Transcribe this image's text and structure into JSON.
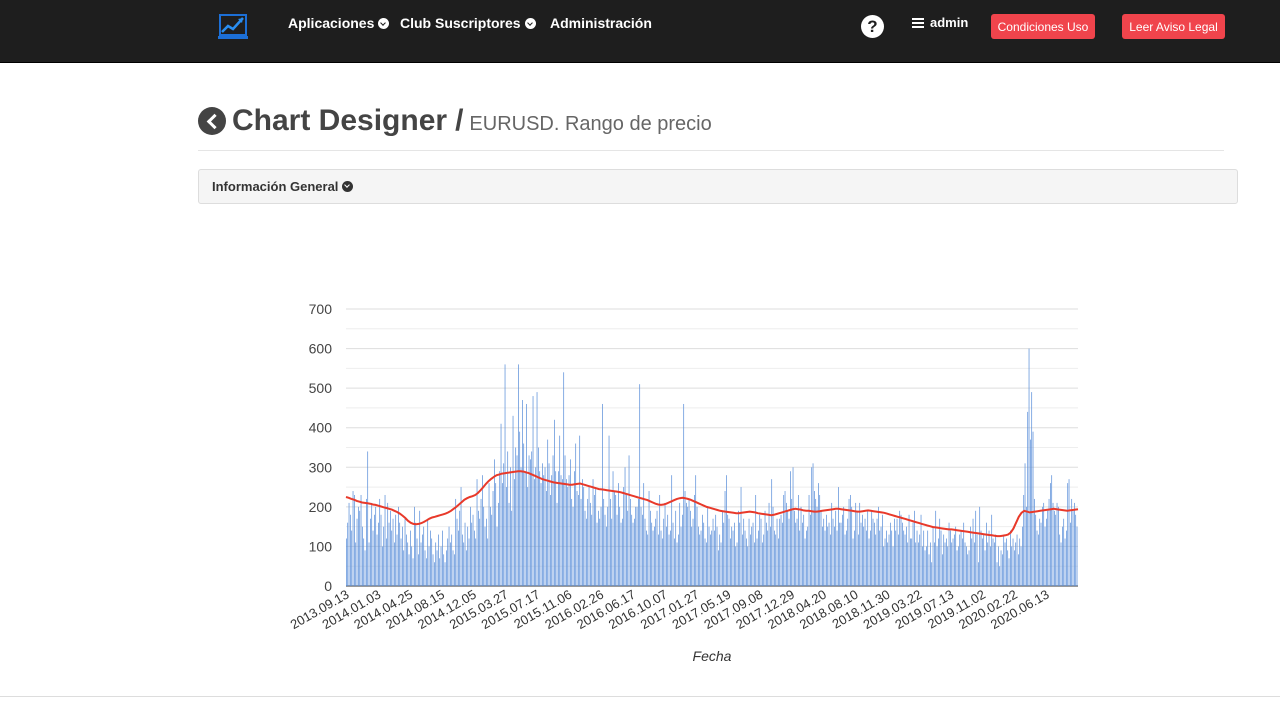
{
  "nav": {
    "logo_icon": "chart-logo-icon",
    "items": [
      {
        "label": "Aplicaciones",
        "dropdown": true
      },
      {
        "label": "Club Suscriptores",
        "dropdown": true
      },
      {
        "label": "Administración",
        "dropdown": false
      }
    ],
    "help_symbol": "?",
    "user": "admin",
    "buttons": [
      {
        "label": "Condiciones Uso"
      },
      {
        "label": "Leer Aviso Legal"
      }
    ],
    "accent_color": "#f0444c"
  },
  "page": {
    "title": "Chart Designer",
    "separator": "/",
    "subtitle": "EURUSD. Rango de precio"
  },
  "panel": {
    "title": "Información General"
  },
  "chart_data": {
    "type": "bar",
    "xlabel": "Fecha",
    "ylabel": "",
    "ylim": [
      0,
      700
    ],
    "yticks": [
      0,
      100,
      200,
      300,
      400,
      500,
      600,
      700
    ],
    "grid": true,
    "x_tick_labels": [
      "2013.09.13",
      "2014.01.03",
      "2014.04.25",
      "2014.08.15",
      "2014.12.05",
      "2015.03.27",
      "2015.07.17",
      "2015.11.06",
      "2016.02.26",
      "2016.06.17",
      "2016.10.07",
      "2017.01.27",
      "2017.05.19",
      "2017.09.08",
      "2017.12.29",
      "2018.04.20",
      "2018.08.10",
      "2018.11.30",
      "2019.03.22",
      "2019.07.13",
      "2019.11.02",
      "2020.02.22",
      "2020.06.13"
    ],
    "series": [
      {
        "type": "bar",
        "color": "#5b8fd9",
        "values": [
          120,
          160,
          210,
          180,
          140,
          240,
          230,
          110,
          170,
          200,
          190,
          230,
          150,
          120,
          90,
          220,
          340,
          110,
          170,
          210,
          140,
          180,
          200,
          130,
          160,
          220,
          180,
          100,
          150,
          230,
          120,
          210,
          160,
          190,
          140,
          170,
          110,
          180,
          130,
          200,
          160,
          120,
          150,
          90,
          170,
          130,
          110,
          80,
          140,
          100,
          70,
          200,
          160,
          120,
          80,
          190,
          110,
          130,
          150,
          90,
          70,
          170,
          100,
          140,
          120,
          80,
          60,
          110,
          90,
          130,
          70,
          100,
          140,
          80,
          60,
          90,
          120,
          150,
          110,
          130,
          90,
          80,
          220,
          170,
          140,
          190,
          250,
          130,
          110,
          160,
          90,
          150,
          120,
          200,
          160,
          180,
          140,
          120,
          270,
          190,
          170,
          220,
          280,
          200,
          150,
          170,
          120,
          260,
          200,
          180,
          240,
          320,
          260,
          150,
          210,
          290,
          410,
          260,
          310,
          560,
          250,
          340,
          210,
          300,
          190,
          430,
          270,
          350,
          330,
          560,
          390,
          300,
          470,
          360,
          290,
          460,
          250,
          330,
          320,
          340,
          480,
          270,
          300,
          490,
          350,
          290,
          260,
          310,
          280,
          300,
          240,
          370,
          310,
          230,
          280,
          330,
          420,
          290,
          210,
          290,
          380,
          280,
          270,
          540,
          330,
          270,
          250,
          280,
          320,
          220,
          200,
          290,
          360,
          240,
          230,
          380,
          220,
          270,
          250,
          190,
          170,
          220,
          250,
          210,
          180,
          270,
          230,
          250,
          160,
          190,
          170,
          200,
          460,
          220,
          180,
          150,
          200,
          380,
          220,
          170,
          290,
          240,
          230,
          180,
          260,
          200,
          160,
          170,
          250,
          300,
          230,
          190,
          330,
          220,
          180,
          160,
          170,
          200,
          200,
          220,
          510,
          200,
          180,
          260,
          170,
          140,
          130,
          240,
          190,
          160,
          140,
          150,
          170,
          190,
          130,
          230,
          140,
          120,
          170,
          210,
          150,
          180,
          130,
          140,
          280,
          160,
          120,
          190,
          110,
          130,
          210,
          150,
          180,
          460,
          240,
          210,
          200,
          220,
          190,
          150,
          170,
          230,
          280,
          200,
          150,
          130,
          140,
          180,
          160,
          120,
          110,
          200,
          150,
          130,
          140,
          170,
          140,
          180,
          150,
          90,
          130,
          110,
          190,
          160,
          240,
          280,
          180,
          170,
          120,
          150,
          140,
          160,
          100,
          110,
          190,
          160,
          250,
          130,
          170,
          140,
          120,
          100,
          170,
          130,
          150,
          160,
          110,
          230,
          120,
          140,
          180,
          170,
          110,
          130,
          190,
          160,
          140,
          210,
          150,
          270,
          200,
          140,
          130,
          170,
          120,
          170,
          180,
          160,
          230,
          240,
          210,
          190,
          170,
          290,
          220,
          300,
          190,
          160,
          170,
          230,
          140,
          200,
          160,
          180,
          120,
          140,
          150,
          230,
          180,
          300,
          310,
          240,
          220,
          200,
          260,
          230,
          190,
          150,
          170,
          140,
          180,
          150,
          160,
          130,
          210,
          170,
          150,
          190,
          140,
          250,
          160,
          160,
          180,
          200,
          130,
          140,
          170,
          220,
          230,
          200,
          120,
          140,
          210,
          190,
          130,
          210,
          160,
          180,
          150,
          170,
          140,
          190,
          120,
          140,
          190,
          170,
          160,
          130,
          170,
          200,
          140,
          150,
          180,
          100,
          120,
          140,
          110,
          130,
          160,
          140,
          100,
          170,
          140,
          170,
          130,
          190,
          180,
          160,
          140,
          130,
          150,
          110,
          180,
          120,
          120,
          160,
          190,
          110,
          140,
          110,
          130,
          180,
          100,
          140,
          90,
          100,
          140,
          80,
          110,
          60,
          150,
          110,
          190,
          100,
          120,
          170,
          140,
          80,
          130,
          110,
          120,
          100,
          160,
          140,
          110,
          120,
          130,
          150,
          90,
          100,
          130,
          140,
          120,
          160,
          110,
          100,
          80,
          90,
          150,
          120,
          170,
          110,
          190,
          130,
          60,
          200,
          140,
          120,
          130,
          90,
          160,
          110,
          140,
          100,
          180,
          120,
          110,
          130,
          60,
          100,
          50,
          90,
          80,
          130,
          110,
          120,
          90,
          70,
          140,
          100,
          120,
          90,
          110,
          130,
          80,
          120,
          100,
          150,
          230,
          310,
          200,
          440,
          600,
          370,
          490,
          390,
          220,
          180,
          140,
          130,
          170,
          160,
          200,
          210,
          150,
          170,
          190,
          220,
          260,
          280,
          210,
          190,
          180,
          210,
          200,
          130,
          110,
          150,
          170,
          120,
          140,
          260,
          270,
          160,
          220,
          190,
          210,
          180,
          150
        ]
      },
      {
        "type": "line",
        "color": "#e8392a",
        "values": [
          225,
          223,
          220,
          218,
          215,
          213,
          211,
          210,
          209,
          208,
          206,
          205,
          203,
          201,
          199,
          197,
          195,
          193,
          190,
          187,
          183,
          178,
          172,
          165,
          160,
          157,
          156,
          157,
          159,
          162,
          166,
          170,
          173,
          175,
          177,
          179,
          181,
          183,
          186,
          190,
          195,
          200,
          206,
          212,
          218,
          222,
          225,
          227,
          230,
          235,
          242,
          250,
          258,
          265,
          271,
          276,
          280,
          282,
          284,
          285,
          286,
          287,
          288,
          289,
          290,
          290,
          289,
          287,
          285,
          282,
          279,
          276,
          273,
          270,
          268,
          266,
          264,
          262,
          261,
          260,
          259,
          258,
          257,
          256,
          256,
          257,
          258,
          259,
          257,
          255,
          253,
          251,
          249,
          247,
          245,
          244,
          243,
          242,
          241,
          240,
          239,
          238,
          237,
          235,
          233,
          231,
          229,
          227,
          225,
          223,
          221,
          219,
          217,
          214,
          211,
          208,
          206,
          205,
          206,
          208,
          211,
          214,
          217,
          220,
          222,
          223,
          222,
          220,
          218,
          215,
          212,
          209,
          206,
          203,
          200,
          198,
          196,
          194,
          192,
          190,
          189,
          188,
          187,
          186,
          185,
          184,
          184,
          185,
          186,
          187,
          188,
          187,
          186,
          184,
          183,
          182,
          181,
          180,
          179,
          180,
          182,
          184,
          186,
          188,
          190,
          192,
          194,
          195,
          194,
          193,
          191,
          190,
          190,
          189,
          188,
          188,
          189,
          190,
          191,
          192,
          193,
          194,
          195,
          195,
          194,
          193,
          192,
          191,
          190,
          189,
          188,
          188,
          189,
          190,
          191,
          190,
          189,
          188,
          187,
          186,
          185,
          183,
          181,
          179,
          177,
          175,
          173,
          171,
          169,
          167,
          165,
          163,
          161,
          159,
          157,
          155,
          153,
          151,
          149,
          148,
          147,
          146,
          145,
          144,
          143,
          143,
          142,
          141,
          140,
          139,
          138,
          137,
          136,
          135,
          134,
          133,
          132,
          131,
          130,
          129,
          128,
          127,
          126,
          126,
          127,
          128,
          130,
          135,
          145,
          160,
          175,
          185,
          190,
          188,
          186,
          187,
          188,
          189,
          190,
          191,
          192,
          193,
          194,
          195,
          194,
          193,
          192,
          191,
          190,
          191,
          192,
          193,
          194
        ]
      }
    ]
  }
}
